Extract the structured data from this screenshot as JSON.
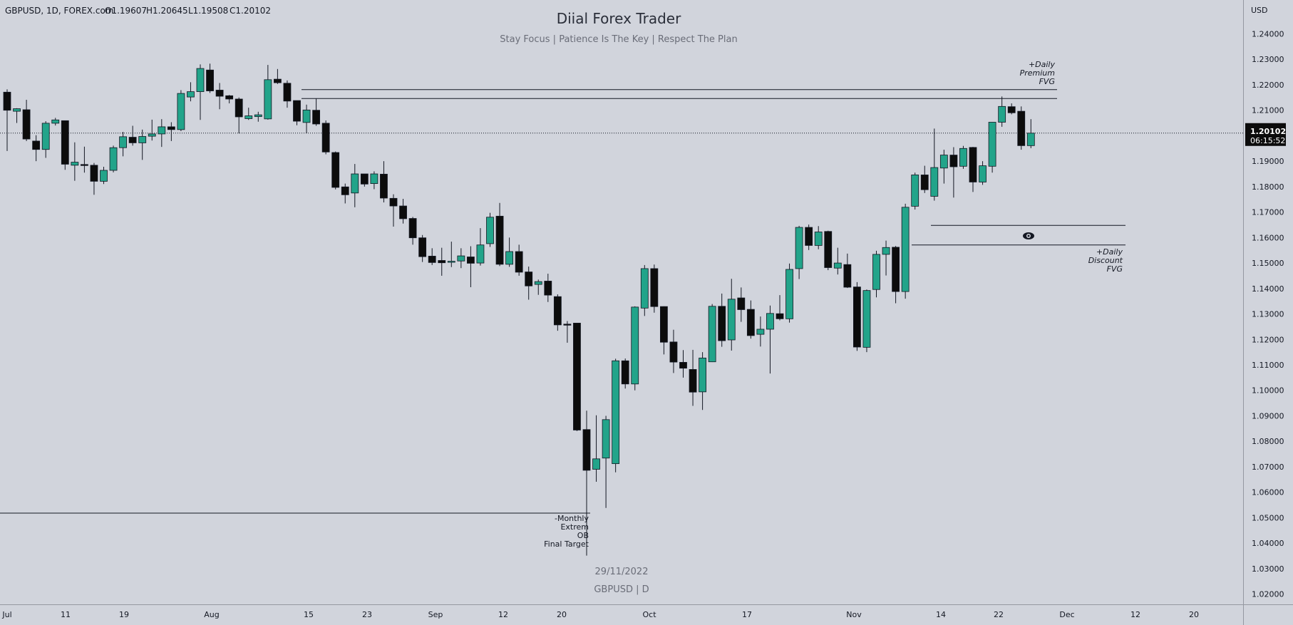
{
  "header": {
    "symbol_info": "GBPUSD, 1D, FOREX.com",
    "open": "O1.19607",
    "high": "H1.20645",
    "low": "L1.19508",
    "close": "C1.20102"
  },
  "watermark": {
    "title": "Diial Forex Trader",
    "subtitle": "Stay Focus | Patience Is The Key | Respect The Plan",
    "date": "29/11/2022",
    "symbol_line": "GBPUSD | D"
  },
  "price_scale": {
    "currency": "USD",
    "ticks": [
      "1.24000",
      "1.23000",
      "1.22000",
      "1.21000",
      "1.20000",
      "1.19000",
      "1.18000",
      "1.17000",
      "1.16000",
      "1.15000",
      "1.14000",
      "1.13000",
      "1.12000",
      "1.11000",
      "1.10000",
      "1.09000",
      "1.08000",
      "1.07000",
      "1.06000",
      "1.05000",
      "1.04000",
      "1.03000",
      "1.02000"
    ],
    "last_price": "1.20102",
    "countdown": "06:15:52"
  },
  "time_axis": {
    "labels": [
      "Jul",
      "11",
      "19",
      "Aug",
      "15",
      "23",
      "Sep",
      "12",
      "20",
      "Oct",
      "17",
      "Nov",
      "14",
      "22",
      "Dec",
      "12",
      "20"
    ]
  },
  "annotations": {
    "premium_fvg": [
      "+Daily",
      "Premium",
      "FVG"
    ],
    "discount_fvg": [
      "+Daily",
      "Discount",
      "FVG"
    ],
    "monthly_ob": [
      "-Monthly",
      "Extrem",
      "OB",
      "Final Target"
    ]
  },
  "colors": {
    "background": "#d1d4dc",
    "bull": "#22a48a",
    "bear": "#0c0c0c",
    "wick": "#131722",
    "label_bg": "#0c0c0c"
  },
  "chart_data": {
    "type": "candlestick",
    "title": "",
    "xlabel": "",
    "ylabel": "USD",
    "ylim": [
      1.0135,
      1.2476
    ],
    "x_labels": [
      "Jul",
      "11",
      "19",
      "Aug",
      "15",
      "23",
      "Sep",
      "12",
      "20",
      "Oct",
      "17",
      "Nov",
      "14",
      "22",
      "Dec",
      "12",
      "20"
    ],
    "levels": {
      "premium_fvg": [
        1.2146,
        1.2181
      ],
      "discount_fvg": [
        1.1571,
        1.1648
      ],
      "monthly_extreme_ob": 1.0518,
      "last_price": 1.20102
    },
    "candles": [
      {
        "o": 1.2171,
        "h": 1.2182,
        "l": 1.194,
        "c": 1.21
      },
      {
        "o": 1.2096,
        "h": 1.2108,
        "l": 1.205,
        "c": 1.2106
      },
      {
        "o": 1.2102,
        "h": 1.2141,
        "l": 1.1979,
        "c": 1.1987
      },
      {
        "o": 1.1979,
        "h": 1.2002,
        "l": 1.19,
        "c": 1.1946
      },
      {
        "o": 1.1946,
        "h": 1.2057,
        "l": 1.1913,
        "c": 1.2049
      },
      {
        "o": 1.2049,
        "h": 1.207,
        "l": 1.204,
        "c": 1.2062
      },
      {
        "o": 1.2059,
        "h": 1.2059,
        "l": 1.1866,
        "c": 1.1888
      },
      {
        "o": 1.1884,
        "h": 1.1974,
        "l": 1.1823,
        "c": 1.1896
      },
      {
        "o": 1.1887,
        "h": 1.1957,
        "l": 1.1855,
        "c": 1.1884
      },
      {
        "o": 1.1884,
        "h": 1.1893,
        "l": 1.1768,
        "c": 1.1821
      },
      {
        "o": 1.1821,
        "h": 1.1878,
        "l": 1.181,
        "c": 1.1864
      },
      {
        "o": 1.1864,
        "h": 1.1961,
        "l": 1.1856,
        "c": 1.1953
      },
      {
        "o": 1.1953,
        "h": 1.2015,
        "l": 1.1919,
        "c": 1.1996
      },
      {
        "o": 1.1994,
        "h": 1.2039,
        "l": 1.1961,
        "c": 1.1972
      },
      {
        "o": 1.1972,
        "h": 1.2024,
        "l": 1.1905,
        "c": 1.1997
      },
      {
        "o": 1.1998,
        "h": 1.2063,
        "l": 1.1981,
        "c": 1.2007
      },
      {
        "o": 1.2007,
        "h": 1.2065,
        "l": 1.1956,
        "c": 1.2035
      },
      {
        "o": 1.2035,
        "h": 1.2053,
        "l": 1.1979,
        "c": 1.2024
      },
      {
        "o": 1.2024,
        "h": 1.2179,
        "l": 1.2018,
        "c": 1.2166
      },
      {
        "o": 1.2152,
        "h": 1.221,
        "l": 1.2135,
        "c": 1.2173
      },
      {
        "o": 1.2173,
        "h": 1.228,
        "l": 1.2062,
        "c": 1.2264
      },
      {
        "o": 1.2258,
        "h": 1.2283,
        "l": 1.2168,
        "c": 1.2176
      },
      {
        "o": 1.2179,
        "h": 1.2207,
        "l": 1.2104,
        "c": 1.2155
      },
      {
        "o": 1.2157,
        "h": 1.216,
        "l": 1.2127,
        "c": 1.2144
      },
      {
        "o": 1.2144,
        "h": 1.215,
        "l": 1.2009,
        "c": 1.2074
      },
      {
        "o": 1.2067,
        "h": 1.211,
        "l": 1.2062,
        "c": 1.2078
      },
      {
        "o": 1.2075,
        "h": 1.2094,
        "l": 1.2055,
        "c": 1.2082
      },
      {
        "o": 1.2066,
        "h": 1.2278,
        "l": 1.2063,
        "c": 1.222
      },
      {
        "o": 1.2222,
        "h": 1.2262,
        "l": 1.2203,
        "c": 1.2208
      },
      {
        "o": 1.2206,
        "h": 1.2217,
        "l": 1.211,
        "c": 1.2136
      },
      {
        "o": 1.2138,
        "h": 1.2138,
        "l": 1.2041,
        "c": 1.2057
      },
      {
        "o": 1.2052,
        "h": 1.2122,
        "l": 1.201,
        "c": 1.2101
      },
      {
        "o": 1.21,
        "h": 1.2146,
        "l": 1.2039,
        "c": 1.2046
      },
      {
        "o": 1.2049,
        "h": 1.206,
        "l": 1.1927,
        "c": 1.1936
      },
      {
        "o": 1.1934,
        "h": 1.1938,
        "l": 1.1789,
        "c": 1.1797
      },
      {
        "o": 1.1799,
        "h": 1.1812,
        "l": 1.1734,
        "c": 1.1768
      },
      {
        "o": 1.1775,
        "h": 1.1889,
        "l": 1.1719,
        "c": 1.185
      },
      {
        "o": 1.185,
        "h": 1.185,
        "l": 1.18,
        "c": 1.181
      },
      {
        "o": 1.1812,
        "h": 1.186,
        "l": 1.179,
        "c": 1.185
      },
      {
        "o": 1.1849,
        "h": 1.19,
        "l": 1.1738,
        "c": 1.1755
      },
      {
        "o": 1.1754,
        "h": 1.177,
        "l": 1.1643,
        "c": 1.1724
      },
      {
        "o": 1.1724,
        "h": 1.1752,
        "l": 1.1655,
        "c": 1.1674
      },
      {
        "o": 1.1675,
        "h": 1.1681,
        "l": 1.1572,
        "c": 1.1599
      },
      {
        "o": 1.1599,
        "h": 1.161,
        "l": 1.1504,
        "c": 1.1525
      },
      {
        "o": 1.1527,
        "h": 1.1558,
        "l": 1.1492,
        "c": 1.1502
      },
      {
        "o": 1.151,
        "h": 1.156,
        "l": 1.145,
        "c": 1.1501
      },
      {
        "o": 1.1503,
        "h": 1.1584,
        "l": 1.1484,
        "c": 1.1507
      },
      {
        "o": 1.1508,
        "h": 1.1558,
        "l": 1.148,
        "c": 1.1528
      },
      {
        "o": 1.1524,
        "h": 1.1566,
        "l": 1.1405,
        "c": 1.1499
      },
      {
        "o": 1.15,
        "h": 1.1637,
        "l": 1.149,
        "c": 1.1571
      },
      {
        "o": 1.1576,
        "h": 1.1697,
        "l": 1.1563,
        "c": 1.168
      },
      {
        "o": 1.1684,
        "h": 1.1736,
        "l": 1.1488,
        "c": 1.1495
      },
      {
        "o": 1.1495,
        "h": 1.16,
        "l": 1.1485,
        "c": 1.1545
      },
      {
        "o": 1.1545,
        "h": 1.1572,
        "l": 1.145,
        "c": 1.1464
      },
      {
        "o": 1.1465,
        "h": 1.1486,
        "l": 1.1356,
        "c": 1.141
      },
      {
        "o": 1.1416,
        "h": 1.1435,
        "l": 1.1375,
        "c": 1.1427
      },
      {
        "o": 1.1429,
        "h": 1.1458,
        "l": 1.1347,
        "c": 1.1374
      },
      {
        "o": 1.1368,
        "h": 1.1377,
        "l": 1.1234,
        "c": 1.1257
      },
      {
        "o": 1.126,
        "h": 1.1272,
        "l": 1.1187,
        "c": 1.1256
      },
      {
        "o": 1.1264,
        "h": 1.1264,
        "l": 1.084,
        "c": 1.0844
      },
      {
        "o": 1.0846,
        "h": 1.092,
        "l": 1.0351,
        "c": 1.0686
      },
      {
        "o": 1.069,
        "h": 1.0902,
        "l": 1.0641,
        "c": 1.0731
      },
      {
        "o": 1.0734,
        "h": 1.09,
        "l": 1.0538,
        "c": 1.0885
      },
      {
        "o": 1.0712,
        "h": 1.1124,
        "l": 1.0678,
        "c": 1.1116
      },
      {
        "o": 1.1116,
        "h": 1.1125,
        "l": 1.1007,
        "c": 1.1025
      },
      {
        "o": 1.1025,
        "h": 1.133,
        "l": 1.1,
        "c": 1.1327
      },
      {
        "o": 1.1323,
        "h": 1.1492,
        "l": 1.1292,
        "c": 1.1478
      },
      {
        "o": 1.1478,
        "h": 1.1494,
        "l": 1.1305,
        "c": 1.1329
      },
      {
        "o": 1.1329,
        "h": 1.133,
        "l": 1.1141,
        "c": 1.1189
      },
      {
        "o": 1.119,
        "h": 1.1238,
        "l": 1.1068,
        "c": 1.1111
      },
      {
        "o": 1.111,
        "h": 1.1158,
        "l": 1.105,
        "c": 1.1087
      },
      {
        "o": 1.1082,
        "h": 1.1159,
        "l": 1.0939,
        "c": 1.0993
      },
      {
        "o": 1.0994,
        "h": 1.115,
        "l": 1.0923,
        "c": 1.1127
      },
      {
        "o": 1.1112,
        "h": 1.1339,
        "l": 1.1111,
        "c": 1.133
      },
      {
        "o": 1.133,
        "h": 1.138,
        "l": 1.1171,
        "c": 1.1195
      },
      {
        "o": 1.1198,
        "h": 1.1438,
        "l": 1.1156,
        "c": 1.1358
      },
      {
        "o": 1.1363,
        "h": 1.1404,
        "l": 1.1269,
        "c": 1.1317
      },
      {
        "o": 1.1318,
        "h": 1.1353,
        "l": 1.1203,
        "c": 1.1215
      },
      {
        "o": 1.122,
        "h": 1.129,
        "l": 1.1172,
        "c": 1.124
      },
      {
        "o": 1.124,
        "h": 1.1333,
        "l": 1.1066,
        "c": 1.1302
      },
      {
        "o": 1.1301,
        "h": 1.1374,
        "l": 1.1275,
        "c": 1.1281
      },
      {
        "o": 1.1281,
        "h": 1.1498,
        "l": 1.1266,
        "c": 1.1475
      },
      {
        "o": 1.1478,
        "h": 1.1646,
        "l": 1.1437,
        "c": 1.164
      },
      {
        "o": 1.164,
        "h": 1.1651,
        "l": 1.1551,
        "c": 1.1569
      },
      {
        "o": 1.1569,
        "h": 1.1645,
        "l": 1.1554,
        "c": 1.1622
      },
      {
        "o": 1.1624,
        "h": 1.1627,
        "l": 1.1472,
        "c": 1.1482
      },
      {
        "o": 1.148,
        "h": 1.156,
        "l": 1.1455,
        "c": 1.15
      },
      {
        "o": 1.1494,
        "h": 1.1537,
        "l": 1.1402,
        "c": 1.1405
      },
      {
        "o": 1.1406,
        "h": 1.1425,
        "l": 1.1155,
        "c": 1.117
      },
      {
        "o": 1.1169,
        "h": 1.1396,
        "l": 1.115,
        "c": 1.1392
      },
      {
        "o": 1.1396,
        "h": 1.1548,
        "l": 1.1365,
        "c": 1.1534
      },
      {
        "o": 1.1534,
        "h": 1.1588,
        "l": 1.1451,
        "c": 1.1561
      },
      {
        "o": 1.1562,
        "h": 1.1567,
        "l": 1.1342,
        "c": 1.1388
      },
      {
        "o": 1.1388,
        "h": 1.1733,
        "l": 1.136,
        "c": 1.1719
      },
      {
        "o": 1.1723,
        "h": 1.1855,
        "l": 1.171,
        "c": 1.1846
      },
      {
        "o": 1.1846,
        "h": 1.1882,
        "l": 1.1775,
        "c": 1.1788
      },
      {
        "o": 1.1762,
        "h": 1.2028,
        "l": 1.1745,
        "c": 1.1875
      },
      {
        "o": 1.1873,
        "h": 1.1945,
        "l": 1.1812,
        "c": 1.1924
      },
      {
        "o": 1.1924,
        "h": 1.1955,
        "l": 1.1757,
        "c": 1.1878
      },
      {
        "o": 1.188,
        "h": 1.196,
        "l": 1.187,
        "c": 1.195
      },
      {
        "o": 1.1954,
        "h": 1.1956,
        "l": 1.1779,
        "c": 1.1818
      },
      {
        "o": 1.1818,
        "h": 1.19,
        "l": 1.1807,
        "c": 1.1882
      },
      {
        "o": 1.188,
        "h": 1.2052,
        "l": 1.1855,
        "c": 1.2053
      },
      {
        "o": 1.2053,
        "h": 1.2154,
        "l": 1.2035,
        "c": 1.2115
      },
      {
        "o": 1.2114,
        "h": 1.2127,
        "l": 1.2084,
        "c": 1.209
      },
      {
        "o": 1.2096,
        "h": 1.2115,
        "l": 1.1945,
        "c": 1.1961
      },
      {
        "o": 1.1961,
        "h": 1.2065,
        "l": 1.1951,
        "c": 1.201
      }
    ]
  }
}
